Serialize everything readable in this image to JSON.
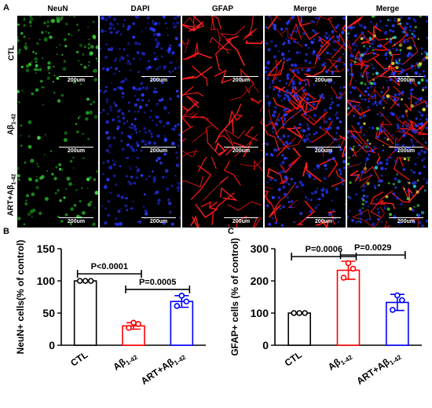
{
  "panel_a": {
    "letter": "A",
    "columns": [
      "NeuN",
      "DAPI",
      "GFAP",
      "Merge",
      "Merge"
    ],
    "rows": [
      "CTL",
      "Aβ1-42",
      "ART+Aβ1-42"
    ],
    "scale_label": "200um"
  },
  "chart_data": [
    {
      "letter": "B",
      "type": "bar",
      "ylabel": "NeuN+ cells(% of control)",
      "categories": [
        "CTL",
        "Aβ1-42",
        "ART+Aβ1-42"
      ],
      "category_colors": [
        "#000000",
        "#ff0000",
        "#0000ff"
      ],
      "values": [
        100,
        30,
        68
      ],
      "errors": [
        0,
        5,
        9
      ],
      "points": [
        [
          100,
          100,
          100
        ],
        [
          27,
          33,
          35
        ],
        [
          61,
          68,
          77
        ]
      ],
      "ylim": [
        0,
        150
      ],
      "yticks": [
        0,
        50,
        100,
        150
      ],
      "comparisons": [
        {
          "from": 0,
          "to": 1,
          "label": "P<0.0001"
        },
        {
          "from": 1,
          "to": 2,
          "label": "P=0.0005"
        }
      ]
    },
    {
      "letter": "C",
      "type": "bar",
      "ylabel": "GFAP+ cells (% of control)",
      "categories": [
        "CTL",
        "Aβ1-42",
        "ART+Aβ1-42"
      ],
      "category_colors": [
        "#000000",
        "#ff0000",
        "#0000ff"
      ],
      "values": [
        100,
        233,
        133
      ],
      "errors": [
        0,
        28,
        25
      ],
      "points": [
        [
          100,
          100,
          100
        ],
        [
          210,
          238,
          255
        ],
        [
          110,
          140,
          155
        ]
      ],
      "ylim": [
        0,
        300
      ],
      "yticks": [
        0,
        100,
        200,
        300
      ],
      "comparisons": [
        {
          "from": 0,
          "to": 1,
          "label": "P=0.0006"
        },
        {
          "from": 1,
          "to": 2,
          "label": "P=0.0029"
        }
      ]
    }
  ]
}
